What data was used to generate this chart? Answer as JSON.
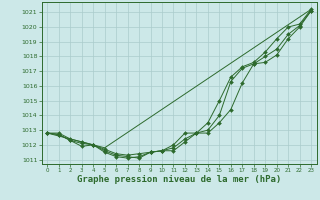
{
  "background_color": "#cce8e8",
  "grid_color": "#aacccc",
  "line_color": "#2d6a2d",
  "marker_color": "#2d6a2d",
  "xlabel": "Graphe pression niveau de la mer (hPa)",
  "xlabel_fontsize": 6.5,
  "xlim": [
    -0.5,
    23.5
  ],
  "ylim": [
    1010.7,
    1021.7
  ],
  "yticks": [
    1011,
    1012,
    1013,
    1014,
    1015,
    1016,
    1017,
    1018,
    1019,
    1020,
    1021
  ],
  "xticks": [
    0,
    1,
    2,
    3,
    4,
    5,
    6,
    7,
    8,
    9,
    10,
    11,
    12,
    13,
    14,
    15,
    16,
    17,
    18,
    19,
    20,
    21,
    22,
    23
  ],
  "curve1_x": [
    0,
    1,
    2,
    3,
    4,
    5,
    6,
    7,
    8,
    9,
    10,
    11,
    12,
    13,
    14,
    15,
    16,
    17,
    18,
    19,
    20,
    21,
    22,
    23
  ],
  "curve1_y": [
    1012.8,
    1012.7,
    1012.3,
    1011.9,
    1012.0,
    1011.5,
    1011.2,
    1011.1,
    1011.2,
    1011.5,
    1011.6,
    1011.6,
    1012.2,
    1012.8,
    1012.8,
    1013.5,
    1014.4,
    1016.2,
    1017.5,
    1017.6,
    1018.1,
    1019.2,
    1020.0,
    1021.1
  ],
  "curve2_x": [
    0,
    1,
    2,
    3,
    4,
    5,
    6,
    7,
    8,
    9,
    10,
    11,
    12,
    13,
    14,
    15,
    16,
    17,
    18,
    19,
    20,
    21,
    22,
    23
  ],
  "curve2_y": [
    1012.8,
    1012.8,
    1012.4,
    1012.2,
    1012.0,
    1011.7,
    1011.4,
    1011.3,
    1011.4,
    1011.5,
    1011.6,
    1012.0,
    1012.8,
    1012.8,
    1013.0,
    1014.0,
    1016.3,
    1017.2,
    1017.5,
    1018.0,
    1018.5,
    1019.5,
    1020.1,
    1021.1
  ],
  "curve3_x": [
    0,
    1,
    2,
    3,
    4,
    5,
    6,
    7,
    8,
    9,
    10,
    11,
    12,
    13,
    14,
    15,
    16,
    17,
    18,
    19,
    20,
    21,
    22,
    23
  ],
  "curve3_y": [
    1012.8,
    1012.7,
    1012.3,
    1012.1,
    1012.0,
    1011.6,
    1011.3,
    1011.2,
    1011.1,
    1011.5,
    1011.6,
    1011.8,
    1012.4,
    1012.8,
    1013.5,
    1015.0,
    1016.6,
    1017.3,
    1017.6,
    1018.3,
    1019.2,
    1020.0,
    1020.2,
    1021.2
  ],
  "curve4_x": [
    0,
    5,
    23
  ],
  "curve4_y": [
    1012.8,
    1011.8,
    1021.2
  ]
}
